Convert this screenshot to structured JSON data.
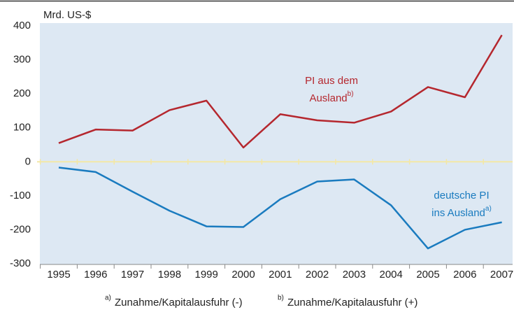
{
  "chart_data": {
    "type": "line",
    "y_label": "Mrd. US-$",
    "categories": [
      "1995",
      "1996",
      "1997",
      "1998",
      "1999",
      "2000",
      "2001",
      "2002",
      "2003",
      "2004",
      "2005",
      "2006",
      "2007"
    ],
    "series": [
      {
        "color": "#b5272e",
        "values": [
          55,
          95,
          92,
          152,
          180,
          42,
          140,
          122,
          115,
          148,
          220,
          190,
          373
        ]
      },
      {
        "color": "#1a7bbf",
        "values": [
          -17,
          -30,
          -88,
          -144,
          -190,
          -192,
          -110,
          -58,
          -52,
          -128,
          -255,
          -200,
          -178
        ]
      }
    ],
    "ylim": [
      -300,
      400
    ],
    "yticks": [
      -300,
      -200,
      -100,
      0,
      100,
      200,
      300,
      400
    ],
    "background": "#dde8f3",
    "zero_line_color": "#f3e7a6",
    "annotations": [
      {
        "lines": [
          "PI aus dem",
          "Ausland"
        ],
        "sup": "b)",
        "color": "#b5272e"
      },
      {
        "lines": [
          "deutsche PI",
          "ins Ausland"
        ],
        "sup": "a)",
        "color": "#1a7bbf"
      }
    ],
    "footnotes": [
      {
        "mark": "a)",
        "text": "Zunahme/Kapitalausfuhr (-)"
      },
      {
        "mark": "b)",
        "text": "Zunahme/Kapitalausfuhr (+)"
      }
    ]
  }
}
